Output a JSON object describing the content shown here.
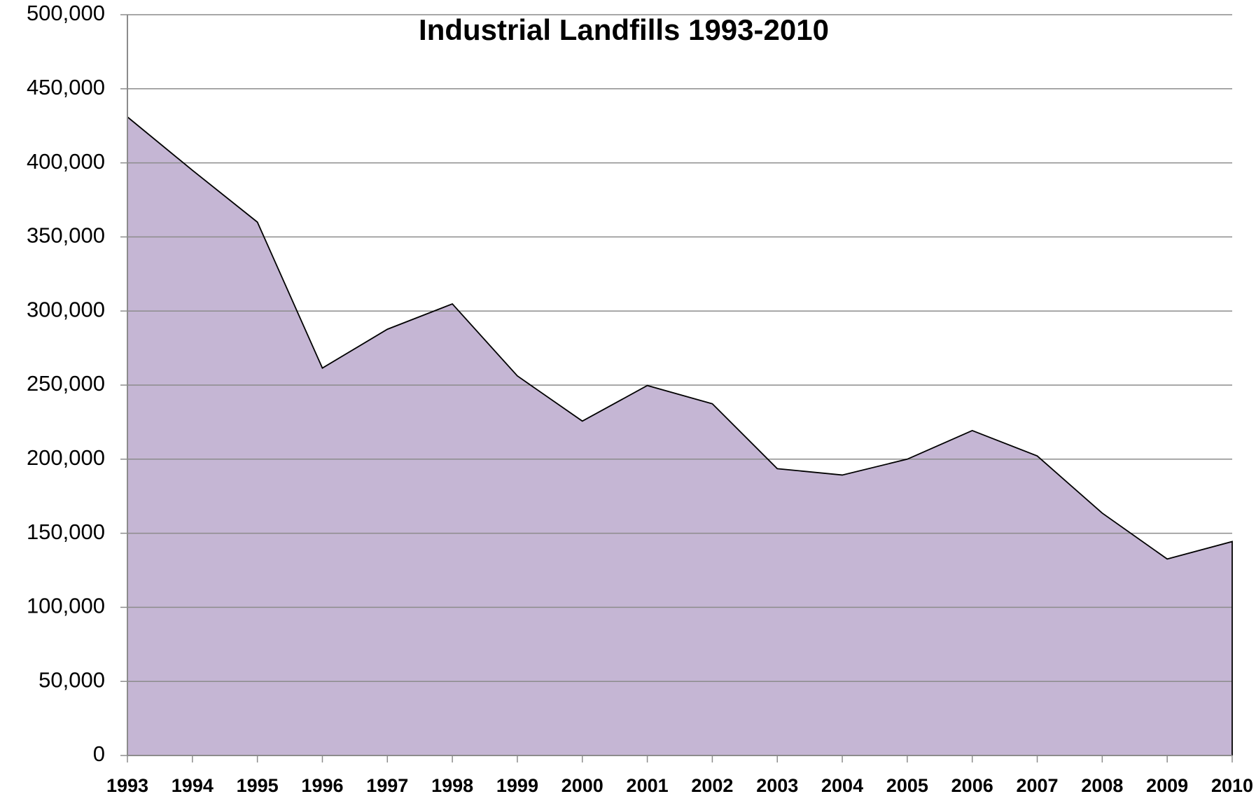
{
  "chart_data": {
    "type": "area",
    "title": "Industrial Landfills 1993-2010",
    "categories": [
      "1993",
      "1994",
      "1995",
      "1996",
      "1997",
      "1998",
      "1999",
      "2000",
      "2001",
      "2002",
      "2003",
      "2004",
      "2005",
      "2006",
      "2007",
      "2008",
      "2009",
      "2010"
    ],
    "values": [
      431000,
      395000,
      360000,
      261500,
      287700,
      304800,
      256200,
      225700,
      249700,
      237400,
      193600,
      189300,
      200000,
      219300,
      202200,
      163600,
      132600,
      144400
    ],
    "color": "#c5b6d4",
    "line_color": "#000000",
    "ylim": [
      0,
      500000
    ],
    "yticks": [
      0,
      {
        "value": 50000,
        "label": "50,000"
      },
      {
        "value": 100000,
        "label": "100,000"
      },
      {
        "value": 150000,
        "label": "150,000"
      },
      {
        "value": 200000,
        "label": "200,000"
      },
      {
        "value": 250000,
        "label": "250,000"
      },
      {
        "value": 300000,
        "label": "300,000"
      },
      {
        "value": 350000,
        "label": "350,000"
      },
      {
        "value": 400000,
        "label": "400,000"
      },
      {
        "value": 450000,
        "label": "450,000"
      },
      {
        "value": 500000,
        "label": "500,000"
      }
    ],
    "grid": true
  }
}
